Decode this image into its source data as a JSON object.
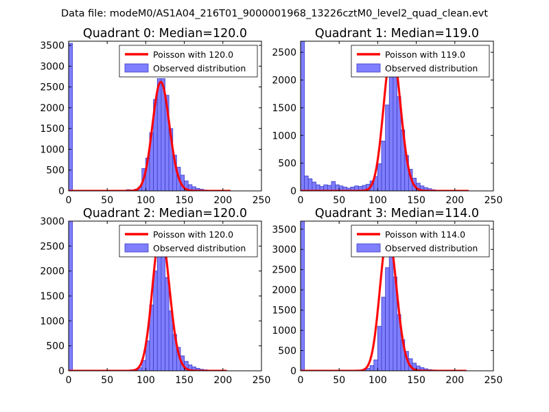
{
  "figure": {
    "suptitle": "Data file: modeM0/AS1A04_216T01_9000001968_13226cztM0_level2_quad_clean.evt"
  },
  "colors": {
    "bar_fill": "#7f7fff",
    "bar_edge": "#3b3bc4",
    "poisson_line": "#ff0000"
  },
  "chart_data": [
    {
      "type": "bar",
      "title": "Quadrant 0: Median=120.0",
      "xlim": [
        0,
        250
      ],
      "ylim": [
        0,
        3600
      ],
      "xticks": [
        0,
        50,
        100,
        150,
        200,
        250
      ],
      "yticks": [
        0,
        500,
        1000,
        1500,
        2000,
        2500,
        3000,
        3500
      ],
      "legend": {
        "location": "top-right",
        "line_label": "Poisson with 120.0",
        "bar_label": "Observed distribution"
      },
      "histogram": {
        "bin_width": 5,
        "bins": [
          [
            0,
            3550
          ],
          [
            75,
            30
          ],
          [
            80,
            20
          ],
          [
            85,
            40
          ],
          [
            90,
            90
          ],
          [
            95,
            540
          ],
          [
            100,
            790
          ],
          [
            105,
            1400
          ],
          [
            110,
            2200
          ],
          [
            115,
            2700
          ],
          [
            120,
            2700
          ],
          [
            125,
            2300
          ],
          [
            130,
            1500
          ],
          [
            135,
            860
          ],
          [
            140,
            570
          ],
          [
            145,
            380
          ],
          [
            150,
            240
          ],
          [
            155,
            150
          ],
          [
            160,
            100
          ],
          [
            165,
            60
          ],
          [
            170,
            40
          ],
          [
            175,
            20
          ],
          [
            180,
            10
          ]
        ]
      },
      "poisson": {
        "lambda": 120.0,
        "scale": 2620,
        "x_range": [
          0,
          210
        ]
      }
    },
    {
      "type": "bar",
      "title": "Quadrant 1: Median=119.0",
      "xlim": [
        0,
        250
      ],
      "ylim": [
        0,
        2700
      ],
      "xticks": [
        0,
        50,
        100,
        150,
        200,
        250
      ],
      "yticks": [
        0,
        500,
        1000,
        1500,
        2000,
        2500
      ],
      "legend": {
        "location": "top-right",
        "line_label": "Poisson with 119.0",
        "bar_label": "Observed distribution"
      },
      "histogram": {
        "bin_width": 5,
        "bins": [
          [
            0,
            2700
          ],
          [
            5,
            270
          ],
          [
            10,
            220
          ],
          [
            15,
            160
          ],
          [
            20,
            110
          ],
          [
            25,
            80
          ],
          [
            30,
            110
          ],
          [
            35,
            100
          ],
          [
            40,
            170
          ],
          [
            45,
            110
          ],
          [
            50,
            90
          ],
          [
            55,
            70
          ],
          [
            60,
            50
          ],
          [
            65,
            70
          ],
          [
            70,
            90
          ],
          [
            75,
            80
          ],
          [
            80,
            100
          ],
          [
            85,
            120
          ],
          [
            90,
            180
          ],
          [
            95,
            260
          ],
          [
            100,
            490
          ],
          [
            105,
            900
          ],
          [
            110,
            1550
          ],
          [
            115,
            2550
          ],
          [
            120,
            2550
          ],
          [
            125,
            1700
          ],
          [
            130,
            1100
          ],
          [
            135,
            640
          ],
          [
            140,
            390
          ],
          [
            145,
            230
          ],
          [
            150,
            140
          ],
          [
            155,
            90
          ],
          [
            160,
            60
          ],
          [
            165,
            40
          ],
          [
            170,
            20
          ],
          [
            175,
            10
          ]
        ]
      },
      "poisson": {
        "lambda": 119.0,
        "scale": 2550,
        "x_range": [
          0,
          218
        ]
      }
    },
    {
      "type": "bar",
      "title": "Quadrant 2: Median=120.0",
      "xlim": [
        0,
        250
      ],
      "ylim": [
        0,
        3000
      ],
      "xticks": [
        0,
        50,
        100,
        150,
        200,
        250
      ],
      "yticks": [
        0,
        500,
        1000,
        1500,
        2000,
        2500,
        3000
      ],
      "legend": {
        "location": "top-right",
        "line_label": "Poisson with 120.0",
        "bar_label": "Observed distribution"
      },
      "histogram": {
        "bin_width": 5,
        "bins": [
          [
            0,
            3000
          ],
          [
            80,
            20
          ],
          [
            85,
            30
          ],
          [
            90,
            60
          ],
          [
            95,
            210
          ],
          [
            100,
            600
          ],
          [
            105,
            1320
          ],
          [
            110,
            2000
          ],
          [
            115,
            2830
          ],
          [
            120,
            2470
          ],
          [
            125,
            1870
          ],
          [
            130,
            1200
          ],
          [
            135,
            730
          ],
          [
            140,
            470
          ],
          [
            145,
            300
          ],
          [
            150,
            190
          ],
          [
            155,
            120
          ],
          [
            160,
            80
          ],
          [
            165,
            50
          ],
          [
            170,
            30
          ],
          [
            175,
            20
          ],
          [
            180,
            10
          ],
          [
            185,
            5
          ]
        ]
      },
      "poisson": {
        "lambda": 120.0,
        "scale": 2780,
        "x_range": [
          0,
          205
        ]
      }
    },
    {
      "type": "bar",
      "title": "Quadrant 3: Median=114.0",
      "xlim": [
        0,
        250
      ],
      "ylim": [
        0,
        3700
      ],
      "xticks": [
        0,
        50,
        100,
        150,
        200,
        250
      ],
      "yticks": [
        0,
        500,
        1000,
        1500,
        2000,
        2500,
        3000,
        3500
      ],
      "legend": {
        "location": "top-right",
        "line_label": "Poisson with 114.0",
        "bar_label": "Observed distribution"
      },
      "histogram": {
        "bin_width": 5,
        "bins": [
          [
            0,
            3700
          ],
          [
            80,
            30
          ],
          [
            85,
            60
          ],
          [
            90,
            130
          ],
          [
            95,
            270
          ],
          [
            100,
            1100
          ],
          [
            105,
            1820
          ],
          [
            110,
            2550
          ],
          [
            115,
            3170
          ],
          [
            120,
            2320
          ],
          [
            125,
            1390
          ],
          [
            130,
            770
          ],
          [
            135,
            480
          ],
          [
            140,
            300
          ],
          [
            145,
            190
          ],
          [
            150,
            120
          ],
          [
            155,
            80
          ],
          [
            160,
            50
          ],
          [
            165,
            30
          ],
          [
            170,
            20
          ],
          [
            175,
            10
          ]
        ]
      },
      "poisson": {
        "lambda": 114.0,
        "scale": 3400,
        "x_range": [
          0,
          215
        ]
      }
    }
  ]
}
